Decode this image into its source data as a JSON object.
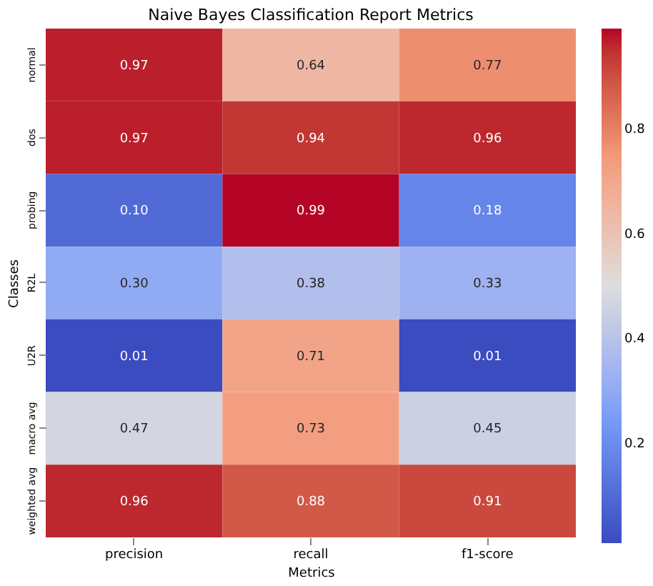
{
  "chart_data": {
    "type": "heatmap",
    "title": "Naive Bayes Classification Report Metrics",
    "xlabel": "Metrics",
    "ylabel": "Classes",
    "categories": [
      "precision",
      "recall",
      "f1-score"
    ],
    "y_categories": [
      "normal",
      "dos",
      "probing",
      "R2L",
      "U2R",
      "macro avg",
      "weighted avg"
    ],
    "cells": [
      [
        0.97,
        0.64,
        0.77
      ],
      [
        0.97,
        0.94,
        0.96
      ],
      [
        0.1,
        0.99,
        0.18
      ],
      [
        0.3,
        0.38,
        0.33
      ],
      [
        0.01,
        0.71,
        0.01
      ],
      [
        0.47,
        0.73,
        0.45
      ],
      [
        0.96,
        0.88,
        0.91
      ]
    ],
    "cell_labels": [
      [
        "0.97",
        "0.64",
        "0.77"
      ],
      [
        "0.97",
        "0.94",
        "0.96"
      ],
      [
        "0.10",
        "0.99",
        "0.18"
      ],
      [
        "0.30",
        "0.38",
        "0.33"
      ],
      [
        "0.01",
        "0.71",
        "0.01"
      ],
      [
        "0.47",
        "0.73",
        "0.45"
      ],
      [
        "0.96",
        "0.88",
        "0.91"
      ]
    ],
    "clim": [
      0.01,
      0.99
    ],
    "cticks": [
      0.2,
      0.4,
      0.6,
      0.8
    ],
    "colors": [
      "#3b4cc0",
      "#7b9ff9",
      "#dddddd",
      "#f49a7b",
      "#b40426"
    ],
    "data_labels": true
  }
}
